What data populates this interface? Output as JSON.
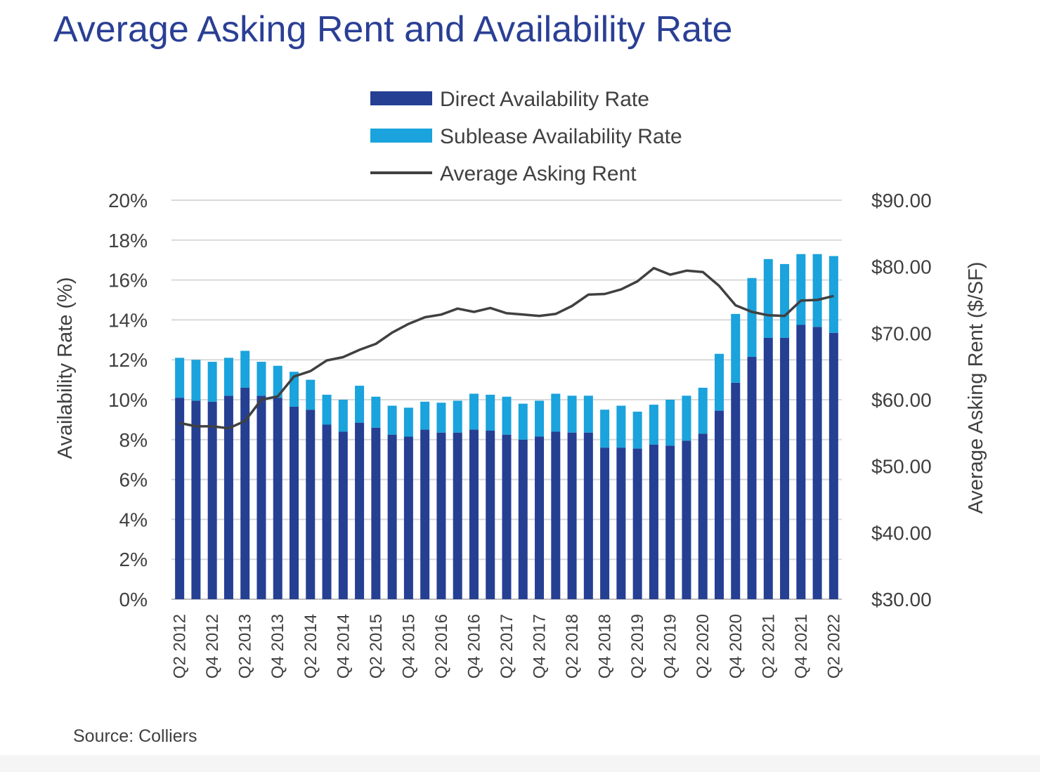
{
  "chart_data": {
    "type": "bar",
    "stacked": true,
    "title": "Average Asking Rent and Availability Rate",
    "categories": [
      "Q2 2012",
      "Q3 2012",
      "Q4 2012",
      "Q1 2013",
      "Q2 2013",
      "Q3 2013",
      "Q4 2013",
      "Q1 2014",
      "Q2 2014",
      "Q3 2014",
      "Q4 2014",
      "Q1 2015",
      "Q2 2015",
      "Q3 2015",
      "Q4 2015",
      "Q1 2016",
      "Q2 2016",
      "Q3 2016",
      "Q4 2016",
      "Q1 2017",
      "Q2 2017",
      "Q3 2017",
      "Q4 2017",
      "Q1 2018",
      "Q2 2018",
      "Q3 2018",
      "Q4 2018",
      "Q1 2019",
      "Q2 2019",
      "Q3 2019",
      "Q4 2019",
      "Q1 2020",
      "Q2 2020",
      "Q3 2020",
      "Q4 2020",
      "Q1 2021",
      "Q2 2021",
      "Q3 2021",
      "Q4 2021",
      "Q1 2022",
      "Q2 2022"
    ],
    "x_tick_labels": [
      "Q2 2012",
      "Q4 2012",
      "Q2 2013",
      "Q4 2013",
      "Q2 2014",
      "Q4 2014",
      "Q2 2015",
      "Q4 2015",
      "Q2 2016",
      "Q4 2016",
      "Q2 2017",
      "Q4 2017",
      "Q2 2018",
      "Q4 2018",
      "Q2 2019",
      "Q4 2019",
      "Q2 2020",
      "Q4 2020",
      "Q2 2021",
      "Q4 2021",
      "Q2 2022"
    ],
    "series": [
      {
        "name": "Direct Availability Rate",
        "type": "bar",
        "axis": "left",
        "color": "#253f93",
        "values": [
          10.1,
          9.95,
          9.9,
          10.2,
          10.6,
          10.2,
          10.1,
          9.65,
          9.5,
          8.75,
          8.4,
          8.85,
          8.6,
          8.25,
          8.15,
          8.5,
          8.35,
          8.35,
          8.5,
          8.45,
          8.25,
          8.0,
          8.15,
          8.4,
          8.35,
          8.35,
          7.6,
          7.6,
          7.55,
          7.75,
          7.7,
          7.95,
          8.3,
          9.45,
          10.85,
          12.15,
          13.1,
          13.1,
          13.75,
          13.65,
          13.35
        ]
      },
      {
        "name": "Sublease Availability Rate",
        "type": "bar",
        "axis": "left",
        "color": "#1aa3dc",
        "values": [
          2.0,
          2.05,
          2.0,
          1.9,
          1.85,
          1.7,
          1.6,
          1.75,
          1.5,
          1.5,
          1.6,
          1.85,
          1.55,
          1.45,
          1.45,
          1.4,
          1.5,
          1.6,
          1.8,
          1.8,
          1.9,
          1.8,
          1.8,
          1.9,
          1.85,
          1.85,
          1.9,
          2.1,
          1.85,
          2.0,
          2.3,
          2.25,
          2.3,
          2.85,
          3.45,
          3.95,
          3.95,
          3.7,
          3.55,
          3.65,
          3.85
        ]
      },
      {
        "name": "Average Asking Rent",
        "type": "line",
        "axis": "right",
        "color": "#404040",
        "values": [
          56.5,
          56.0,
          56.0,
          55.7,
          56.8,
          60.0,
          60.5,
          63.5,
          64.3,
          65.9,
          66.4,
          67.5,
          68.4,
          70.1,
          71.4,
          72.4,
          72.8,
          73.7,
          73.2,
          73.8,
          73.0,
          72.8,
          72.6,
          72.9,
          74.1,
          75.8,
          75.9,
          76.6,
          77.8,
          79.8,
          78.8,
          79.4,
          79.2,
          77.1,
          74.2,
          73.2,
          72.7,
          72.6,
          74.9,
          75.0,
          75.6
        ]
      }
    ],
    "y_left": {
      "label": "Availability Rate (%)",
      "min": 0,
      "max": 20,
      "ticks": [
        "0%",
        "2%",
        "4%",
        "6%",
        "8%",
        "10%",
        "12%",
        "14%",
        "16%",
        "18%",
        "20%"
      ]
    },
    "y_right": {
      "label": "Average Asking Rent ($/SF)",
      "min": 30,
      "max": 90,
      "ticks": [
        "$30.00",
        "$40.00",
        "$50.00",
        "$60.00",
        "$70.00",
        "$80.00",
        "$90.00"
      ]
    },
    "grid": true,
    "legend": "top-center",
    "source": "Source: Colliers"
  }
}
